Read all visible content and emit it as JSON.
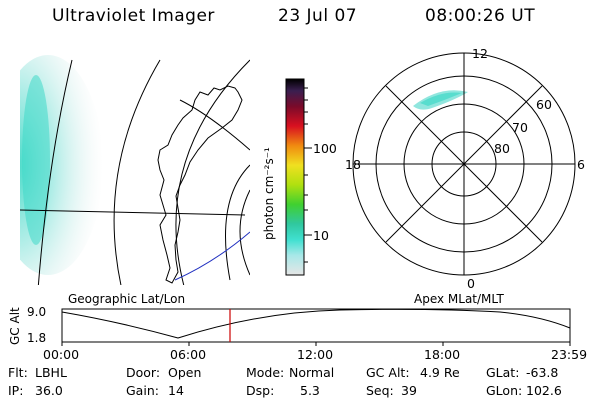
{
  "header": {
    "instrument": "Ultraviolet Imager",
    "date": "23 Jul 07",
    "time": "08:00:26 UT"
  },
  "colorbar": {
    "ticks": [
      "100",
      "10"
    ],
    "unit_label": "photon cm⁻²s⁻¹"
  },
  "polar_plot": {
    "mlt_labels": [
      "12",
      "18",
      "6",
      "0"
    ],
    "lat_labels": [
      "60",
      "70",
      "80"
    ]
  },
  "panel_labels": {
    "left": "Geographic Lat/Lon",
    "right": "Apex MLat/MLT"
  },
  "altitude_plot": {
    "ylabel": "GC Alt",
    "yticks": [
      "9.0",
      "1.8"
    ],
    "xticks": [
      "00:00",
      "06:00",
      "12:00",
      "18:00",
      "23:59"
    ],
    "current_time_marker": "08:00"
  },
  "info": {
    "flt_label": "Flt:",
    "flt_value": "LBHL",
    "ip_label": "IP:",
    "ip_value": "36.0",
    "door_label": "Door:",
    "door_value": "Open",
    "gain_label": "Gain:",
    "gain_value": "14",
    "mode_label": "Mode:",
    "mode_value": "Normal",
    "dsp_label": "Dsp:",
    "dsp_value": "5.3",
    "gcalt_label": "GC Alt:",
    "gcalt_value": "4.9 Re",
    "seq_label": "Seq:",
    "seq_value": "39",
    "glat_label": "GLat:",
    "glat_value": "-63.8",
    "glon_label": "GLon:",
    "glon_value": "102.6"
  },
  "colors": {
    "colorbar_top": "#000000",
    "colorbar_bottom": "#e6e6e6",
    "aurora": "#40d8c8",
    "marker": "#cc0000",
    "coastline_blue": "#2030c0"
  }
}
